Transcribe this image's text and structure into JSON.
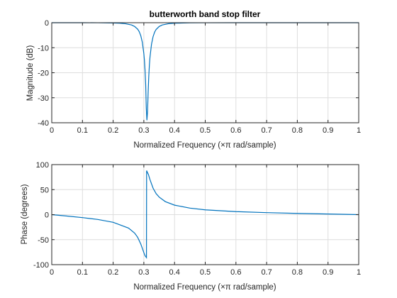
{
  "chart_data": [
    {
      "type": "line",
      "title": "butterworth band stop filter",
      "xlabel": "Normalized Frequency  (×π rad/sample)",
      "ylabel": "Magnitude (dB)",
      "xlim": [
        0,
        1
      ],
      "ylim": [
        -40,
        0
      ],
      "xticks": [
        0,
        0.1,
        0.2,
        0.3,
        0.4,
        0.5,
        0.6,
        0.7,
        0.8,
        0.9,
        1
      ],
      "xtick_labels": [
        "0",
        "0.1",
        "0.2",
        "0.3",
        "0.4",
        "0.5",
        "0.6",
        "0.7",
        "0.8",
        "0.9",
        "1"
      ],
      "yticks": [
        0,
        -10,
        -20,
        -30,
        -40
      ],
      "ytick_labels": [
        "0",
        "-10",
        "-20",
        "-30",
        "-40"
      ],
      "grid": true,
      "color": "#0072bd",
      "series": [
        {
          "x": [
            0,
            0.05,
            0.1,
            0.15,
            0.2,
            0.22,
            0.24,
            0.26,
            0.27,
            0.28,
            0.285,
            0.29,
            0.295,
            0.3,
            0.302,
            0.304,
            0.306,
            0.308,
            0.31,
            0.312,
            0.314,
            0.316,
            0.318,
            0.32,
            0.325,
            0.33,
            0.335,
            0.34,
            0.35,
            0.36,
            0.38,
            0.4,
            0.45,
            0.5,
            0.6,
            0.7,
            0.8,
            0.9,
            1
          ],
          "y": [
            0,
            0,
            0,
            -0.02,
            -0.1,
            -0.2,
            -0.4,
            -0.9,
            -1.5,
            -2.6,
            -3.6,
            -5.2,
            -7.8,
            -12.4,
            -15.2,
            -19.1,
            -24.8,
            -34.3,
            -39,
            -35.6,
            -27.9,
            -21.6,
            -17.1,
            -13.8,
            -8.6,
            -5.6,
            -3.8,
            -2.7,
            -1.5,
            -0.9,
            -0.4,
            -0.2,
            -0.06,
            -0.02,
            0,
            0,
            0,
            0,
            0
          ]
        }
      ]
    },
    {
      "type": "line",
      "title": "",
      "xlabel": "Normalized Frequency  (×π rad/sample)",
      "ylabel": "Phase (degrees)",
      "xlim": [
        0,
        1
      ],
      "ylim": [
        -100,
        100
      ],
      "xticks": [
        0,
        0.1,
        0.2,
        0.3,
        0.4,
        0.5,
        0.6,
        0.7,
        0.8,
        0.9,
        1
      ],
      "xtick_labels": [
        "0",
        "0.1",
        "0.2",
        "0.3",
        "0.4",
        "0.5",
        "0.6",
        "0.7",
        "0.8",
        "0.9",
        "1"
      ],
      "yticks": [
        100,
        50,
        0,
        -50,
        -100
      ],
      "ytick_labels": [
        "100",
        "50",
        "0",
        "-50",
        "-100"
      ],
      "grid": true,
      "color": "#0072bd",
      "series": [
        {
          "x": [
            0,
            0.05,
            0.1,
            0.15,
            0.2,
            0.25,
            0.27,
            0.28,
            0.29,
            0.295,
            0.3,
            0.304,
            0.3085,
            0.309,
            0.312,
            0.315,
            0.32,
            0.33,
            0.34,
            0.35,
            0.37,
            0.4,
            0.45,
            0.5,
            0.6,
            0.7,
            0.8,
            0.9,
            1
          ],
          "y": [
            0,
            -2.8,
            -5.9,
            -9.7,
            -15.3,
            -26.9,
            -36.9,
            -45.5,
            -58.7,
            -67.3,
            -76,
            -82,
            -86,
            88,
            84,
            80,
            70,
            53,
            42,
            35,
            26,
            19,
            13,
            9.6,
            6,
            4,
            2.5,
            1.2,
            0
          ]
        }
      ]
    }
  ]
}
